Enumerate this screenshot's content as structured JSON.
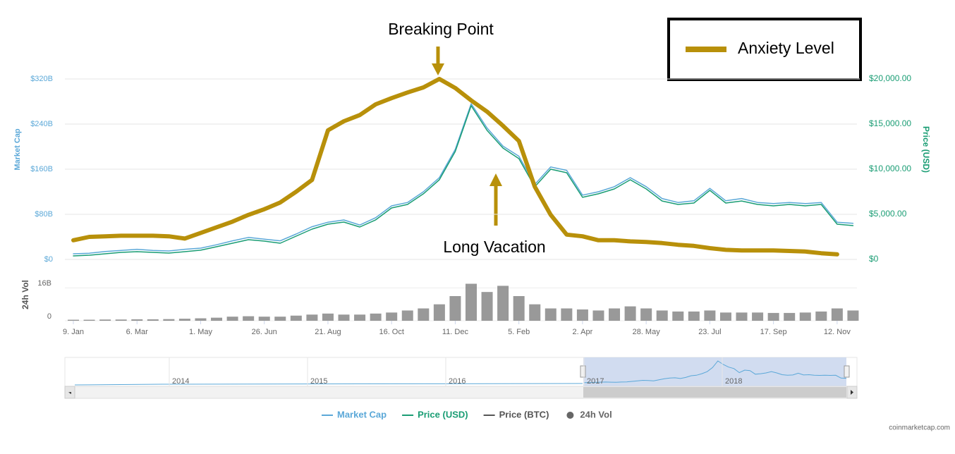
{
  "chart_data": {
    "type": "line",
    "annotations": [
      "Breaking Point",
      "Long Vacation"
    ],
    "y_label": "Market Cap",
    "y2_label": "Price (USD)",
    "vol_label": "24h Vol",
    "credit": "coinmarketcap.com",
    "categories": [
      "9. Jan",
      null,
      null,
      null,
      "6. Mar",
      null,
      null,
      null,
      "1. May",
      null,
      null,
      null,
      "26. Jun",
      null,
      null,
      null,
      "21. Aug",
      null,
      null,
      null,
      "16. Oct",
      null,
      null,
      null,
      "11. Dec",
      null,
      null,
      null,
      "5. Feb",
      null,
      null,
      null,
      "2. Apr",
      null,
      null,
      null,
      "28. May",
      null,
      null,
      null,
      "23. Jul",
      null,
      null,
      null,
      "17. Sep",
      null,
      null,
      null,
      "12. Nov",
      null
    ],
    "ylim": [
      0,
      400
    ],
    "yticks": [
      {
        "value": 0,
        "label": "$0"
      },
      {
        "value": 80,
        "label": "$80B"
      },
      {
        "value": 160,
        "label": "$160B"
      },
      {
        "value": 240,
        "label": "$240B"
      },
      {
        "value": 320,
        "label": "$320B"
      }
    ],
    "y2lim": [
      0,
      25000
    ],
    "y2ticks": [
      {
        "value": 0,
        "label": "$0"
      },
      {
        "value": 5000,
        "label": "$5,000.00"
      },
      {
        "value": 10000,
        "label": "$10,000.00"
      },
      {
        "value": 15000,
        "label": "$15,000.00"
      },
      {
        "value": 20000,
        "label": "$20,000.00"
      }
    ],
    "grid": true,
    "series": [
      {
        "name": "Market Cap",
        "color": "#5ba8d8",
        "axis": "y",
        "width": 1.5,
        "values": [
          10,
          11,
          14,
          16,
          18,
          16,
          15,
          18,
          20,
          26,
          33,
          39,
          36,
          33,
          45,
          58,
          66,
          70,
          61,
          74,
          95,
          101,
          120,
          145,
          195,
          276,
          233,
          201,
          183,
          133,
          164,
          158,
          114,
          120,
          129,
          145,
          129,
          108,
          101,
          104,
          126,
          104,
          108,
          101,
          99,
          101,
          99,
          101,
          66,
          64
        ]
      },
      {
        "name": "Price (USD)",
        "color": "#1a9d74",
        "axis": "y2",
        "width": 1.5,
        "values": [
          390,
          470,
          625,
          780,
          860,
          780,
          700,
          860,
          1020,
          1410,
          1800,
          2190,
          2030,
          1800,
          2580,
          3360,
          3910,
          4140,
          3590,
          4380,
          5700,
          6090,
          7270,
          8830,
          11950,
          17030,
          14300,
          12340,
          11170,
          8050,
          10000,
          9610,
          6880,
          7270,
          7810,
          8830,
          7810,
          6480,
          6090,
          6250,
          7660,
          6250,
          6480,
          6090,
          5940,
          6090,
          5940,
          6090,
          3910,
          3750
        ]
      },
      {
        "name": "Anxiety Level",
        "color": "#b8900a",
        "axis": "y",
        "width": 6,
        "values": [
          34,
          40,
          41,
          42,
          42,
          42,
          41,
          37,
          47,
          57,
          67,
          79,
          89,
          101,
          120,
          141,
          229,
          245,
          256,
          275,
          286,
          296,
          305,
          320,
          304,
          282,
          262,
          237,
          210,
          129,
          79,
          44,
          41,
          34,
          34,
          32,
          31,
          29,
          26,
          24,
          20,
          17,
          16,
          16,
          16,
          15,
          14,
          11,
          9,
          null
        ]
      }
    ],
    "legend_series": [
      2
    ],
    "bottom_legend": [
      {
        "name": "Market Cap",
        "color": "#5ba8d8",
        "shape": "line"
      },
      {
        "name": "Price (USD)",
        "color": "#1a9d74",
        "shape": "line"
      },
      {
        "name": "Price (BTC)",
        "color": "#555555",
        "shape": "line"
      },
      {
        "name": "24h Vol",
        "color": "#666666",
        "shape": "circle"
      }
    ],
    "volume": {
      "name": "24h Vol",
      "color": "#777777",
      "ylim": [
        0,
        24
      ],
      "yticks": [
        0,
        {
          "value": 16,
          "label": "16B"
        }
      ],
      "values": [
        0.5,
        0.5,
        0.6,
        0.6,
        0.7,
        0.7,
        0.8,
        1,
        1.2,
        1.5,
        2,
        2.2,
        2,
        2,
        2.5,
        3,
        3.5,
        3,
        3,
        3.5,
        4,
        5,
        6,
        8,
        12,
        18,
        14,
        17,
        12,
        8,
        6,
        6,
        5.5,
        5,
        6,
        7,
        6,
        5,
        4.5,
        4.5,
        5,
        4,
        4,
        4,
        3.8,
        3.8,
        4,
        4.5,
        6,
        5
      ]
    },
    "navigator": {
      "labels": [
        "2014",
        "2015",
        "2016",
        "2017",
        "2018"
      ]
    }
  }
}
